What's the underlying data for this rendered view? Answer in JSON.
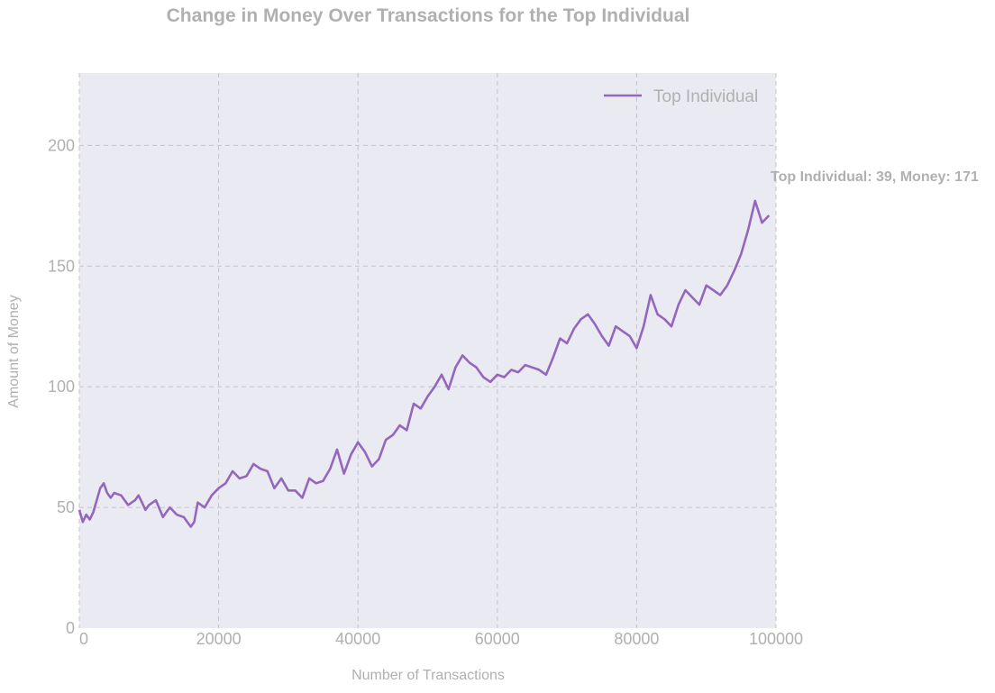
{
  "chart_data": {
    "type": "line",
    "title": "Change in Money Over Transactions for the Top Individual",
    "xlabel": "Number of Transactions",
    "ylabel": "Amount of Money",
    "xlim": [
      0,
      100000
    ],
    "ylim": [
      0,
      230
    ],
    "xticks": [
      0,
      20000,
      40000,
      60000,
      80000,
      100000
    ],
    "yticks": [
      0,
      50,
      100,
      150,
      200
    ],
    "grid": true,
    "legend_position": "top-right",
    "series_color": "#9467bd",
    "series": [
      {
        "name": "Top Individual",
        "x": [
          0,
          500,
          1000,
          1500,
          2000,
          3000,
          3500,
          4000,
          4500,
          5000,
          6000,
          7000,
          8000,
          8500,
          9000,
          9500,
          10000,
          11000,
          12000,
          12500,
          13000,
          14000,
          15000,
          15500,
          16000,
          16500,
          17000,
          18000,
          19000,
          20000,
          21000,
          22000,
          23000,
          24000,
          25000,
          26000,
          27000,
          28000,
          29000,
          30000,
          31000,
          32000,
          33000,
          34000,
          35000,
          36000,
          37000,
          38000,
          39000,
          40000,
          41000,
          42000,
          43000,
          44000,
          45000,
          46000,
          47000,
          48000,
          49000,
          50000,
          51000,
          52000,
          53000,
          54000,
          55000,
          56000,
          57000,
          58000,
          59000,
          60000,
          61000,
          62000,
          63000,
          64000,
          65000,
          66000,
          67000,
          68000,
          69000,
          70000,
          71000,
          72000,
          73000,
          74000,
          75000,
          76000,
          77000,
          78000,
          79000,
          80000,
          81000,
          82000,
          83000,
          84000,
          85000,
          86000,
          87000,
          88000,
          89000,
          90000,
          91000,
          92000,
          93000,
          94000,
          95000,
          96000,
          97000,
          98000,
          99000
        ],
        "values": [
          49,
          44,
          47,
          45,
          48,
          58,
          60,
          56,
          54,
          56,
          55,
          51,
          53,
          55,
          52,
          49,
          51,
          53,
          46,
          48,
          50,
          47,
          46,
          44,
          42,
          44,
          52,
          50,
          55,
          58,
          60,
          65,
          62,
          63,
          68,
          66,
          65,
          58,
          62,
          57,
          57,
          54,
          62,
          60,
          61,
          66,
          74,
          64,
          72,
          77,
          73,
          67,
          70,
          78,
          80,
          84,
          82,
          93,
          91,
          96,
          100,
          105,
          99,
          108,
          113,
          110,
          108,
          104,
          102,
          105,
          104,
          107,
          106,
          109,
          108,
          107,
          105,
          112,
          120,
          118,
          124,
          128,
          130,
          126,
          121,
          117,
          125,
          123,
          121,
          116,
          125,
          138,
          130,
          128,
          125,
          134,
          140,
          137,
          134,
          142,
          140,
          138,
          142,
          148,
          155,
          165,
          177,
          168,
          171
        ]
      }
    ],
    "annotation": "Top Individual: 39, Money: 171"
  }
}
